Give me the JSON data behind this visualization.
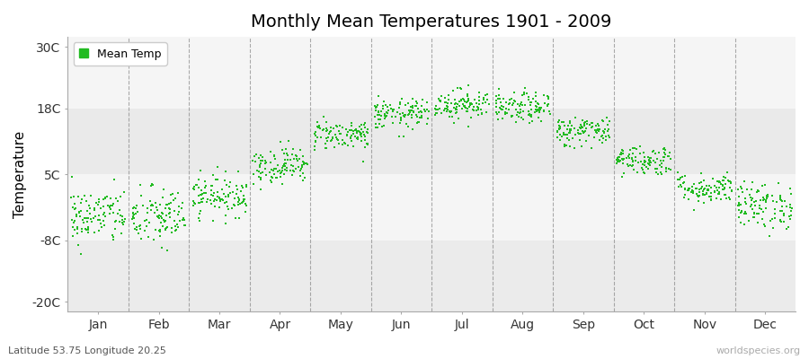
{
  "title": "Monthly Mean Temperatures 1901 - 2009",
  "ylabel": "Temperature",
  "yticks": [
    -20,
    -8,
    5,
    18,
    30
  ],
  "ytick_labels": [
    "-20C",
    "-8C",
    "5C",
    "18C",
    "30C"
  ],
  "ylim": [
    -22,
    32
  ],
  "xlim": [
    0,
    12
  ],
  "months": [
    "Jan",
    "Feb",
    "Mar",
    "Apr",
    "May",
    "Jun",
    "Jul",
    "Aug",
    "Sep",
    "Oct",
    "Nov",
    "Dec"
  ],
  "mean_temps": [
    -3.2,
    -3.5,
    0.8,
    6.8,
    12.8,
    16.8,
    18.8,
    18.0,
    13.5,
    7.8,
    2.2,
    -1.2
  ],
  "std_temps": [
    2.8,
    3.0,
    2.0,
    1.8,
    1.5,
    1.5,
    1.5,
    1.5,
    1.5,
    1.5,
    1.5,
    2.3
  ],
  "n_years": 109,
  "dot_color": "#22bb22",
  "dot_size": 4,
  "bg_bands": [
    {
      "ymin": -22,
      "ymax": -8,
      "color": "#ebebeb"
    },
    {
      "ymin": -8,
      "ymax": 5,
      "color": "#f5f5f5"
    },
    {
      "ymin": 5,
      "ymax": 18,
      "color": "#eaeaea"
    },
    {
      "ymin": 18,
      "ymax": 32,
      "color": "#f5f5f5"
    }
  ],
  "grid_color": "#777777",
  "subtitle": "Latitude 53.75 Longitude 20.25",
  "watermark": "worldspecies.org",
  "legend_label": "Mean Temp",
  "title_fontsize": 14,
  "axis_fontsize": 10,
  "ylabel_fontsize": 11
}
